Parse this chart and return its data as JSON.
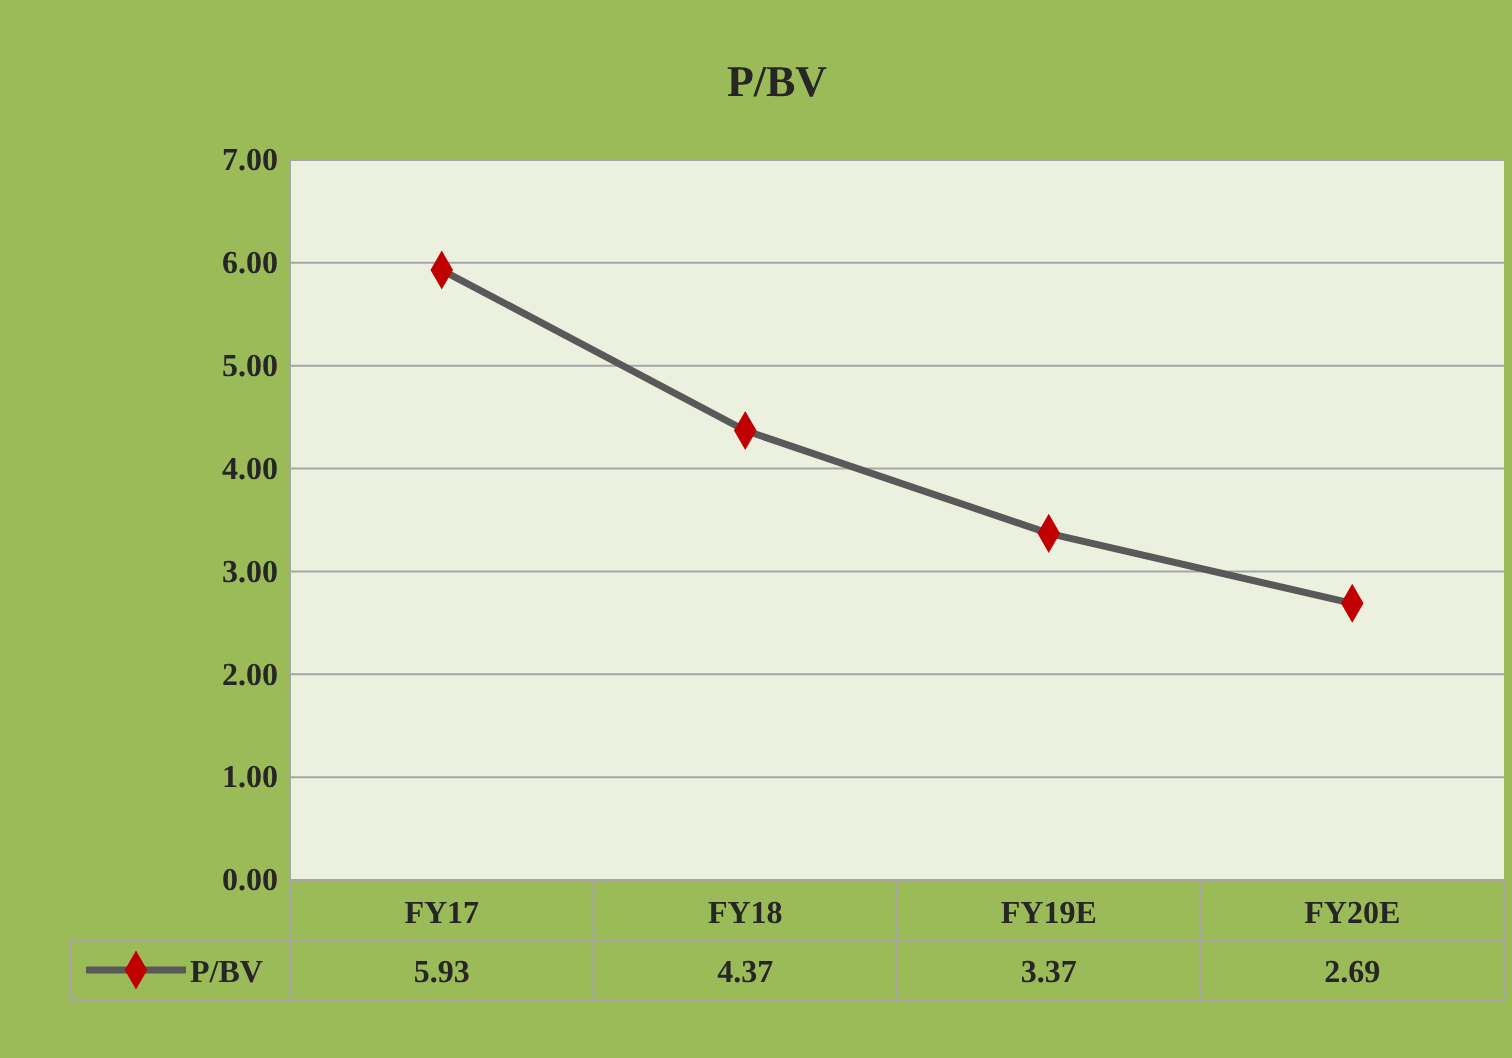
{
  "chart_data": {
    "type": "line",
    "title": "P/BV",
    "categories": [
      "FY17",
      "FY18",
      "FY19E",
      "FY20E"
    ],
    "series": [
      {
        "name": "P/BV",
        "color": "#595959",
        "values": [
          5.93,
          4.37,
          3.37,
          2.69
        ],
        "colors": [
          "#c00000",
          "#c00000",
          "#c00000",
          "#c00000"
        ]
      }
    ],
    "ylim": [
      0,
      7
    ],
    "yticks": [
      {
        "value": 0,
        "label": "0.00"
      },
      {
        "value": 1,
        "label": "1.00"
      },
      {
        "value": 2,
        "label": "2.00"
      },
      {
        "value": 3,
        "label": "3.00"
      },
      {
        "value": 4,
        "label": "4.00"
      },
      {
        "value": 5,
        "label": "5.00"
      },
      {
        "value": 6,
        "label": "6.00"
      },
      {
        "value": 7,
        "label": "7.00"
      }
    ],
    "grid": "y",
    "legend": "bottom",
    "data_labels": true,
    "marker": "diamond",
    "line_style": "solid"
  }
}
